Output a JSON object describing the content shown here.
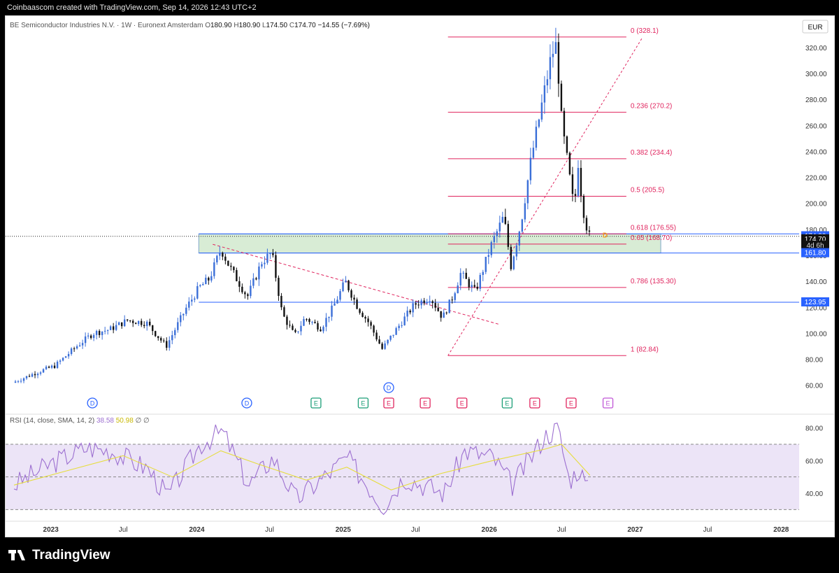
{
  "header": {
    "attribution": "Coinbaascom created with TradingView.com, Sep 14, 2026 12:43 UTC+2"
  },
  "footer": {
    "brand": "TradingView"
  },
  "colors": {
    "up": "#3b6fd8",
    "down": "#111111",
    "fib": "#e0245e",
    "level": "#2962ff",
    "zone_fill": "#d8ecd5",
    "rsi": "#9c6fd0",
    "rsi_sma": "#e6dd3d",
    "rsi_band": "#ece4f7",
    "earnings_green": "#1b9e77",
    "earnings_red": "#e0245e",
    "dividend": "#2962ff",
    "earnings_violet": "#c054d6"
  },
  "chart_data": {
    "type": "candlestick",
    "symbol": "BE Semiconductor Industries N.V.",
    "interval": "1W",
    "exchange": "Euronext Amsterdam",
    "ohlc_header": {
      "o_label": "O",
      "o": "180.90",
      "h_label": "H",
      "h": "180.90",
      "l_label": "L",
      "l": "174.50",
      "c_label": "C",
      "c": "174.70",
      "change": "−14.55 (−7.69%)"
    },
    "currency": "EUR",
    "y_axis": {
      "ticks": [
        "60.00",
        "80.00",
        "100.00",
        "120.00",
        "140.00",
        "160.00",
        "180.00",
        "200.00",
        "220.00",
        "240.00",
        "260.00",
        "280.00",
        "300.00",
        "320.00"
      ],
      "range": [
        55,
        335
      ]
    },
    "x_axis": {
      "ticks": [
        "2023",
        "Jul",
        "2024",
        "Jul",
        "2025",
        "Jul",
        "2026",
        "Jul",
        "2027",
        "Jul",
        "2028"
      ]
    },
    "price_anchors": [
      {
        "date": "2022-10-01",
        "price": 62
      },
      {
        "date": "2022-12-01",
        "price": 70
      },
      {
        "date": "2023-01-15",
        "price": 75
      },
      {
        "date": "2023-03-10",
        "price": 90
      },
      {
        "date": "2023-04-20",
        "price": 100
      },
      {
        "date": "2023-06-01",
        "price": 103
      },
      {
        "date": "2023-07-15",
        "price": 110
      },
      {
        "date": "2023-09-01",
        "price": 108
      },
      {
        "date": "2023-10-20",
        "price": 90
      },
      {
        "date": "2023-12-10",
        "price": 120
      },
      {
        "date": "2024-01-10",
        "price": 135
      },
      {
        "date": "2024-02-05",
        "price": 142
      },
      {
        "date": "2024-03-05",
        "price": 165
      },
      {
        "date": "2024-03-25",
        "price": 152
      },
      {
        "date": "2024-05-10",
        "price": 128
      },
      {
        "date": "2024-06-15",
        "price": 155
      },
      {
        "date": "2024-07-10",
        "price": 162
      },
      {
        "date": "2024-08-05",
        "price": 115
      },
      {
        "date": "2024-09-05",
        "price": 98
      },
      {
        "date": "2024-10-01",
        "price": 112
      },
      {
        "date": "2024-11-10",
        "price": 104
      },
      {
        "date": "2024-12-10",
        "price": 120
      },
      {
        "date": "2025-01-10",
        "price": 140
      },
      {
        "date": "2025-02-10",
        "price": 120
      },
      {
        "date": "2025-03-10",
        "price": 108
      },
      {
        "date": "2025-04-12",
        "price": 88
      },
      {
        "date": "2025-05-15",
        "price": 102
      },
      {
        "date": "2025-07-01",
        "price": 122
      },
      {
        "date": "2025-08-10",
        "price": 128
      },
      {
        "date": "2025-09-10",
        "price": 112
      },
      {
        "date": "2025-10-05",
        "price": 128
      },
      {
        "date": "2025-10-25",
        "price": 146
      },
      {
        "date": "2025-12-01",
        "price": 132
      },
      {
        "date": "2026-01-10",
        "price": 168
      },
      {
        "date": "2026-02-10",
        "price": 190
      },
      {
        "date": "2026-02-28",
        "price": 152
      },
      {
        "date": "2026-03-25",
        "price": 185
      },
      {
        "date": "2026-04-20",
        "price": 235
      },
      {
        "date": "2026-05-20",
        "price": 282
      },
      {
        "date": "2026-06-10",
        "price": 315
      },
      {
        "date": "2026-06-22",
        "price": 322
      },
      {
        "date": "2026-07-05",
        "price": 260
      },
      {
        "date": "2026-07-20",
        "price": 230
      },
      {
        "date": "2026-08-05",
        "price": 195
      },
      {
        "date": "2026-08-15",
        "price": 232
      },
      {
        "date": "2026-08-25",
        "price": 200
      },
      {
        "date": "2026-09-10",
        "price": 174.7
      }
    ],
    "fib_levels": [
      {
        "label": "0 (328.1)",
        "price": 328.1
      },
      {
        "label": "0.236 (270.2)",
        "price": 270.2
      },
      {
        "label": "0.382 (234.4)",
        "price": 234.4
      },
      {
        "label": "0.5 (205.5)",
        "price": 205.5
      },
      {
        "label": "0.618 (176.55)",
        "price": 176.55
      },
      {
        "label": "0.65 (168.70)",
        "price": 168.7
      },
      {
        "label": "0.786 (135.30)",
        "price": 135.3
      },
      {
        "label": "1 (82.84)",
        "price": 82.84
      }
    ],
    "fib_trend": {
      "from_date": "2025-09-20",
      "from_price": 82.84,
      "to_date": "2027-01-20",
      "to_price": 328.1
    },
    "price_tags": [
      {
        "text": "174.80",
        "price": 174.8,
        "style": "blue"
      },
      {
        "text": "174.70",
        "price": 172.5,
        "style": "dark"
      },
      {
        "text": "4d 6h",
        "price": 167.5,
        "style": "sub"
      },
      {
        "text": "161.80",
        "price": 161.8,
        "style": "blue"
      },
      {
        "text": "123.95",
        "price": 123.95,
        "style": "blue"
      }
    ],
    "support_zone": {
      "from_date": "2024-01-06",
      "to_date": "2027-03-06",
      "top": 176.5,
      "bottom": 161.8
    },
    "horizontal_lines": [
      {
        "price": 123.95,
        "from_date": "2024-01-06"
      },
      {
        "price": 161.8,
        "from_date": "2024-01-06"
      },
      {
        "price": 176.55,
        "from_date": "2024-01-06"
      }
    ],
    "trendline": {
      "from_date": "2024-02-10",
      "from_price": 168.5,
      "to_date": "2026-01-25",
      "to_price": 107
    },
    "events": [
      {
        "type": "D",
        "date": "2023-04-15",
        "row": 1
      },
      {
        "type": "D",
        "date": "2024-05-05",
        "row": 1
      },
      {
        "type": "E",
        "date": "2024-10-25",
        "row": 1,
        "color": "green"
      },
      {
        "type": "E",
        "date": "2025-02-20",
        "row": 1,
        "color": "green"
      },
      {
        "type": "D",
        "date": "2025-04-25",
        "row": 0
      },
      {
        "type": "E",
        "date": "2025-04-25",
        "row": 1,
        "color": "red"
      },
      {
        "type": "E",
        "date": "2025-07-25",
        "row": 1,
        "color": "red"
      },
      {
        "type": "E",
        "date": "2025-10-25",
        "row": 1,
        "color": "red"
      },
      {
        "type": "E",
        "date": "2026-02-15",
        "row": 1,
        "color": "green"
      },
      {
        "type": "E",
        "date": "2026-04-25",
        "row": 1,
        "color": "red"
      },
      {
        "type": "E",
        "date": "2026-07-25",
        "row": 1,
        "color": "red"
      },
      {
        "type": "E",
        "date": "2026-10-25",
        "row": 1,
        "color": "violet"
      }
    ],
    "marker": {
      "text": "D",
      "date": "2026-10-01",
      "price": 176
    },
    "rsi": {
      "label": "RSI (14, close, SMA, 14, 2)",
      "value": "38.58",
      "sma": "50.98",
      "extra": "∅ ∅",
      "ticks": [
        "40.00",
        "60.00",
        "80.00"
      ],
      "range": [
        25,
        85
      ],
      "upper": 70,
      "lower": 30,
      "mid": 50,
      "anchors": [
        {
          "date": "2022-10-01",
          "v": 45
        },
        {
          "date": "2023-01-01",
          "v": 58
        },
        {
          "date": "2023-04-01",
          "v": 68
        },
        {
          "date": "2023-06-01",
          "v": 66
        },
        {
          "date": "2023-09-01",
          "v": 55
        },
        {
          "date": "2023-10-20",
          "v": 38
        },
        {
          "date": "2024-01-10",
          "v": 70
        },
        {
          "date": "2024-03-05",
          "v": 78
        },
        {
          "date": "2024-05-10",
          "v": 45
        },
        {
          "date": "2024-07-10",
          "v": 62
        },
        {
          "date": "2024-09-05",
          "v": 36
        },
        {
          "date": "2024-12-10",
          "v": 55
        },
        {
          "date": "2025-01-10",
          "v": 62
        },
        {
          "date": "2025-04-12",
          "v": 32
        },
        {
          "date": "2025-06-01",
          "v": 50
        },
        {
          "date": "2025-09-10",
          "v": 40
        },
        {
          "date": "2025-11-01",
          "v": 66
        },
        {
          "date": "2026-01-10",
          "v": 62
        },
        {
          "date": "2026-02-28",
          "v": 45
        },
        {
          "date": "2026-05-20",
          "v": 75
        },
        {
          "date": "2026-06-22",
          "v": 80
        },
        {
          "date": "2026-07-20",
          "v": 48
        },
        {
          "date": "2026-08-15",
          "v": 55
        },
        {
          "date": "2026-09-10",
          "v": 38.58
        }
      ],
      "sma_anchors": [
        {
          "date": "2022-10-01",
          "v": 45
        },
        {
          "date": "2023-03-01",
          "v": 55
        },
        {
          "date": "2023-07-01",
          "v": 63
        },
        {
          "date": "2023-11-01",
          "v": 50
        },
        {
          "date": "2024-03-01",
          "v": 66
        },
        {
          "date": "2024-06-01",
          "v": 58
        },
        {
          "date": "2024-10-01",
          "v": 48
        },
        {
          "date": "2025-01-10",
          "v": 56
        },
        {
          "date": "2025-05-01",
          "v": 42
        },
        {
          "date": "2025-09-01",
          "v": 52
        },
        {
          "date": "2026-01-10",
          "v": 60
        },
        {
          "date": "2026-05-20",
          "v": 67
        },
        {
          "date": "2026-07-01",
          "v": 70
        },
        {
          "date": "2026-09-10",
          "v": 50.98
        }
      ]
    }
  }
}
